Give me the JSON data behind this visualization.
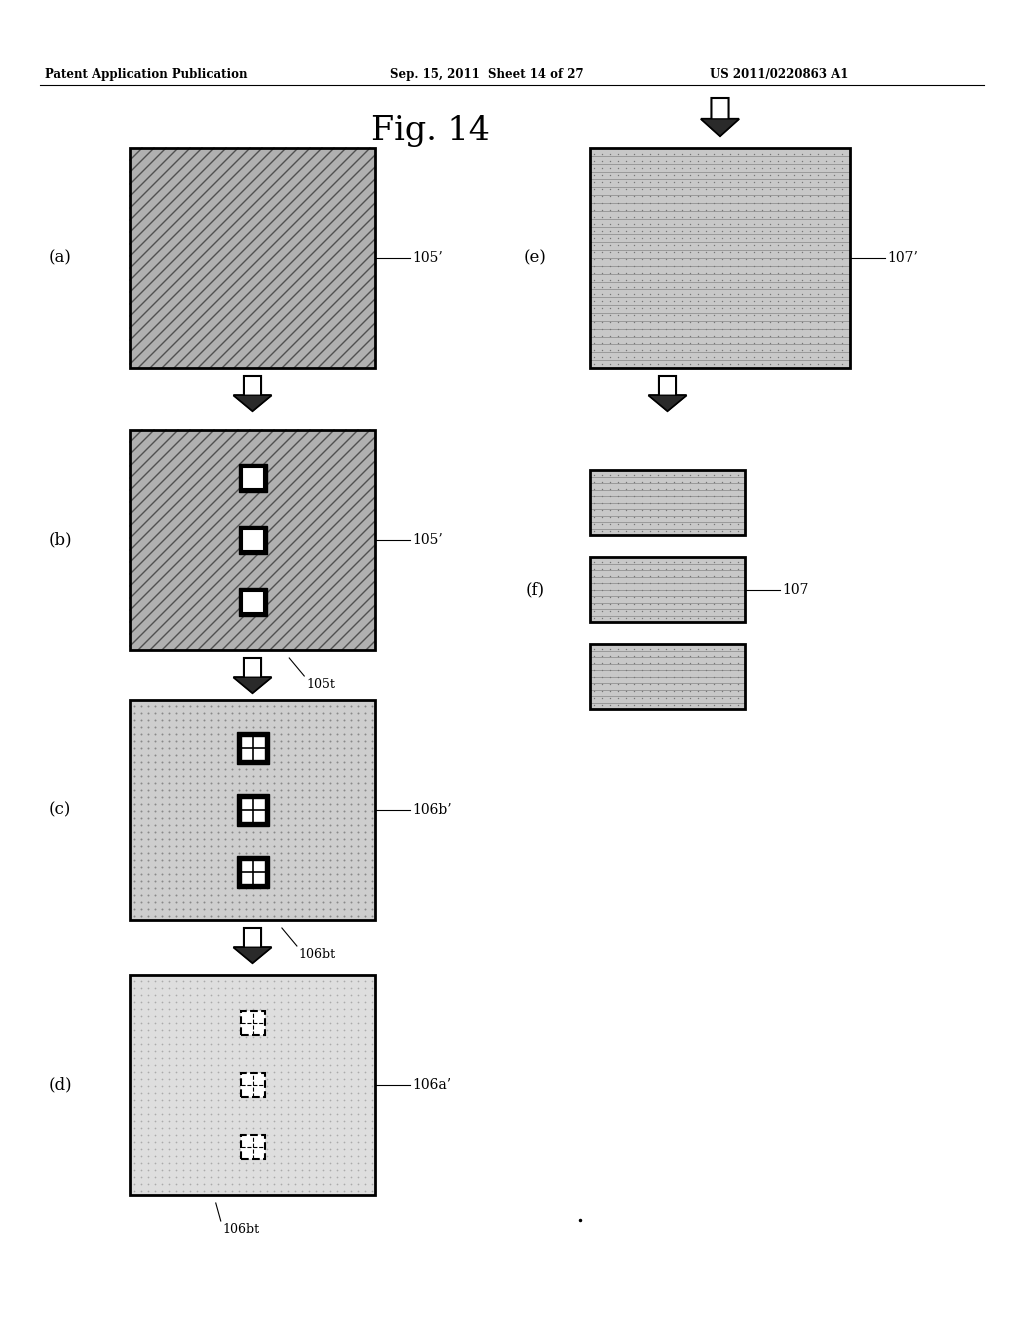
{
  "bg_color": "#ffffff",
  "header_left": "Patent Application Publication",
  "header_mid": "Sep. 15, 2011  Sheet 14 of 27",
  "header_right": "US 2011/0220863 A1",
  "fig_title": "Fig. 14"
}
